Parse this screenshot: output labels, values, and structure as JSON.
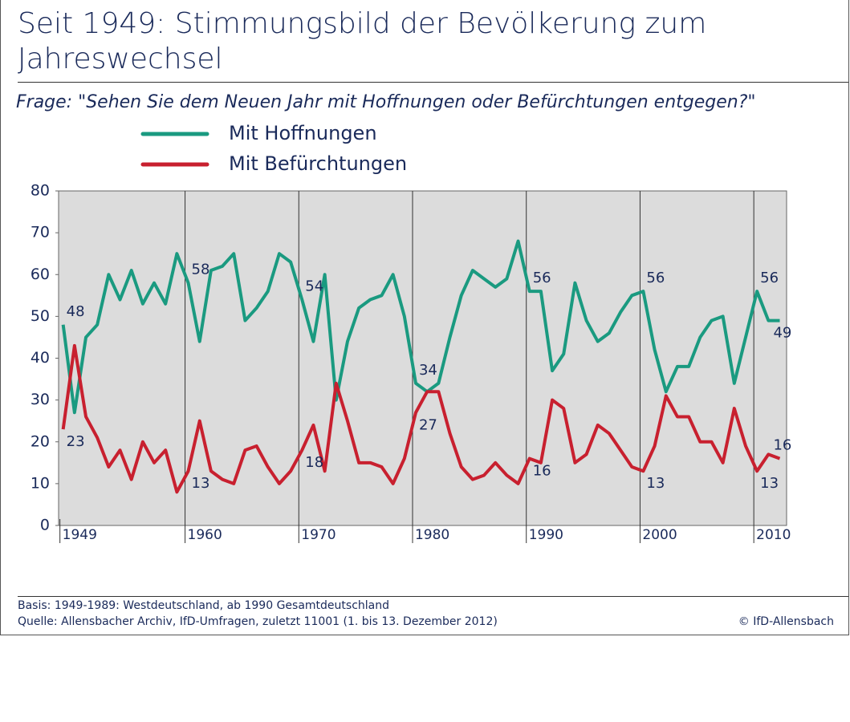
{
  "chart_data": {
    "type": "line",
    "title": "Seit 1949: Stimmungsbild der Bevölkerung zum Jahreswechsel",
    "subtitle": "Frage:  \"Sehen Sie dem Neuen Jahr mit Hoffnungen oder Befürchtungen entgegen?\"",
    "x": [
      1949,
      1950,
      1951,
      1952,
      1953,
      1954,
      1955,
      1956,
      1957,
      1958,
      1959,
      1960,
      1961,
      1962,
      1963,
      1964,
      1965,
      1966,
      1967,
      1968,
      1969,
      1970,
      1971,
      1972,
      1973,
      1974,
      1975,
      1976,
      1977,
      1978,
      1979,
      1980,
      1981,
      1982,
      1983,
      1984,
      1985,
      1986,
      1987,
      1988,
      1989,
      1990,
      1991,
      1992,
      1993,
      1994,
      1995,
      1996,
      1997,
      1998,
      1999,
      2000,
      2001,
      2002,
      2003,
      2004,
      2005,
      2006,
      2007,
      2008,
      2009,
      2010,
      2011,
      2012
    ],
    "series": [
      {
        "name": "Mit Hoffnungen",
        "color": "#1a9a80",
        "values": [
          48,
          27,
          45,
          48,
          60,
          54,
          61,
          53,
          58,
          53,
          65,
          58,
          44,
          61,
          62,
          65,
          49,
          52,
          56,
          65,
          63,
          54,
          44,
          60,
          30,
          44,
          52,
          54,
          55,
          60,
          50,
          34,
          32,
          34,
          45,
          55,
          61,
          59,
          57,
          59,
          68,
          56,
          56,
          37,
          41,
          58,
          49,
          44,
          46,
          51,
          55,
          56,
          42,
          32,
          38,
          38,
          45,
          49,
          50,
          34,
          45,
          56,
          49,
          49
        ],
        "value_labels": [
          "48",
          null,
          null,
          null,
          null,
          null,
          null,
          null,
          null,
          null,
          null,
          "58",
          null,
          null,
          null,
          null,
          null,
          null,
          null,
          null,
          null,
          "54",
          null,
          null,
          null,
          null,
          null,
          null,
          null,
          null,
          null,
          "34",
          null,
          null,
          null,
          null,
          null,
          null,
          null,
          null,
          null,
          "56",
          null,
          null,
          null,
          null,
          null,
          null,
          null,
          null,
          null,
          "56",
          null,
          null,
          null,
          null,
          null,
          null,
          null,
          null,
          null,
          "56",
          null,
          "49"
        ]
      },
      {
        "name": "Mit Befürchtungen",
        "color": "#c8202f",
        "values": [
          23,
          43,
          26,
          21,
          14,
          18,
          11,
          20,
          15,
          18,
          8,
          13,
          25,
          13,
          11,
          10,
          18,
          19,
          14,
          10,
          13,
          18,
          24,
          13,
          34,
          25,
          15,
          15,
          14,
          10,
          16,
          27,
          32,
          32,
          22,
          14,
          11,
          12,
          15,
          12,
          10,
          16,
          15,
          30,
          28,
          15,
          17,
          24,
          22,
          18,
          14,
          13,
          19,
          31,
          26,
          26,
          20,
          20,
          15,
          28,
          19,
          13,
          17,
          16
        ],
        "value_labels": [
          "23",
          null,
          null,
          null,
          null,
          null,
          null,
          null,
          null,
          null,
          null,
          "13",
          null,
          null,
          null,
          null,
          null,
          null,
          null,
          null,
          null,
          "18",
          null,
          null,
          null,
          null,
          null,
          null,
          null,
          null,
          null,
          "27",
          null,
          null,
          null,
          null,
          null,
          null,
          null,
          null,
          null,
          "16",
          null,
          null,
          null,
          null,
          null,
          null,
          null,
          null,
          null,
          "13",
          null,
          null,
          null,
          null,
          null,
          null,
          null,
          null,
          null,
          "13",
          null,
          "16"
        ]
      }
    ],
    "xlim": [
      1948.6,
      2012.6
    ],
    "xticks": [
      1949,
      1960,
      1970,
      1980,
      1990,
      2000,
      2010
    ],
    "ylim": [
      0,
      80
    ],
    "yticks": [
      0,
      10,
      20,
      30,
      40,
      50,
      60,
      70,
      80
    ],
    "grid": false,
    "notes": [
      "Basis: 1949-1989: Westdeutschland, ab 1990 Gesamtdeutschland",
      "Quelle: Allensbacher Archiv, IfD-Umfragen, zuletzt 11001 (1. bis 13. Dezember 2012)"
    ],
    "copyright": "© IfD-Allensbach"
  }
}
